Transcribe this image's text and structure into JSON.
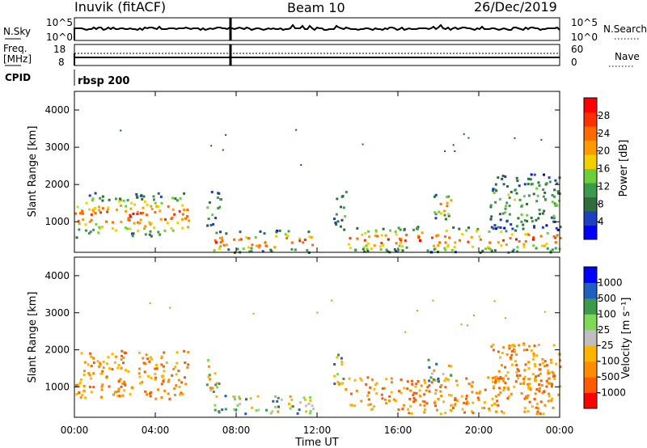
{
  "header": {
    "station": "Inuvik (fitACF)",
    "beam": "Beam 10",
    "date": "26/Dec/2019"
  },
  "status_panels": {
    "nsky_label": "N.Sky",
    "nsky_ticks": [
      "10^5",
      "10^0"
    ],
    "nsearch_label": "N.Search",
    "nsearch_ticks": [
      "10^5",
      "10^0"
    ],
    "freq_label": "Freq.",
    "freq_unit": "[MHz]",
    "freq_ticks": [
      "18",
      "8"
    ],
    "nave_label": "Nave",
    "nave_ticks": [
      "60",
      "0"
    ],
    "cpid_label": "CPID",
    "cpid_value": "rbsp 200"
  },
  "chart_data": [
    {
      "type": "heatmap",
      "name": "power",
      "ylabel": "Slant Range [km]",
      "yticks": [
        1000,
        2000,
        3000,
        4000
      ],
      "ylim": [
        180,
        4500
      ],
      "xlim": [
        0,
        24
      ],
      "xticks": [
        "00:00",
        "04:00",
        "08:00",
        "12:00",
        "16:00",
        "20:00",
        "00:00"
      ],
      "colorbar": {
        "label": "Power [dB]",
        "ticks": [
          "28",
          "24",
          "20",
          "16",
          "12",
          "8",
          "4"
        ],
        "colors": [
          "#0000ff",
          "#1e3fc0",
          "#2f6e3c",
          "#3c9a4c",
          "#6ccf3a",
          "#f0d000",
          "#ff9a00",
          "#ff6a00",
          "#ff3000",
          "#ff0000"
        ]
      },
      "regions": [
        {
          "t0": 0.0,
          "t1": 5.6,
          "r0": 600,
          "r1": 1800,
          "level": "high"
        },
        {
          "t0": 6.5,
          "t1": 7.2,
          "r0": 900,
          "r1": 1900,
          "level": "mixed"
        },
        {
          "t0": 6.8,
          "t1": 11.8,
          "r0": 200,
          "r1": 800,
          "level": "high"
        },
        {
          "t0": 12.8,
          "t1": 13.4,
          "r0": 800,
          "r1": 2000,
          "level": "mixed"
        },
        {
          "t0": 13.5,
          "t1": 24.0,
          "r0": 200,
          "r1": 900,
          "level": "high"
        },
        {
          "t0": 17.4,
          "t1": 18.6,
          "r0": 1100,
          "r1": 1800,
          "level": "high"
        },
        {
          "t0": 20.5,
          "t1": 24.0,
          "r0": 800,
          "r1": 2300,
          "level": "mixed"
        }
      ]
    },
    {
      "type": "heatmap",
      "name": "velocity",
      "ylabel": "Slant Range [km]",
      "yticks": [
        1000,
        2000,
        3000,
        4000
      ],
      "ylim": [
        180,
        4500
      ],
      "xlim": [
        0,
        24
      ],
      "xlabel": "Time UT",
      "xticks": [
        "00:00",
        "04:00",
        "08:00",
        "12:00",
        "16:00",
        "20:00",
        "00:00"
      ],
      "colorbar": {
        "label": "Velocity [m s⁻¹]",
        "ticks": [
          "1000",
          "500",
          "100",
          "25",
          "-25",
          "-100",
          "-500",
          "-1000"
        ],
        "colors": [
          "#ff0000",
          "#ff5a00",
          "#ff8c00",
          "#ffb400",
          "#bfbfbf",
          "#7ed957",
          "#3c9a4c",
          "#1e5fc0",
          "#0000ff"
        ]
      },
      "regions": [
        {
          "t0": 0.0,
          "t1": 5.6,
          "r0": 700,
          "r1": 2000,
          "level": "negative"
        },
        {
          "t0": 6.5,
          "t1": 7.2,
          "r0": 900,
          "r1": 1900,
          "level": "mixed"
        },
        {
          "t0": 6.8,
          "t1": 11.8,
          "r0": 300,
          "r1": 800,
          "level": "mixed"
        },
        {
          "t0": 12.8,
          "t1": 13.4,
          "r0": 800,
          "r1": 1900,
          "level": "mixed"
        },
        {
          "t0": 13.5,
          "t1": 24.0,
          "r0": 300,
          "r1": 1300,
          "level": "negative"
        },
        {
          "t0": 17.4,
          "t1": 18.6,
          "r0": 1100,
          "r1": 1800,
          "level": "mixed"
        },
        {
          "t0": 20.5,
          "t1": 24.0,
          "r0": 800,
          "r1": 2200,
          "level": "negative"
        }
      ]
    }
  ]
}
